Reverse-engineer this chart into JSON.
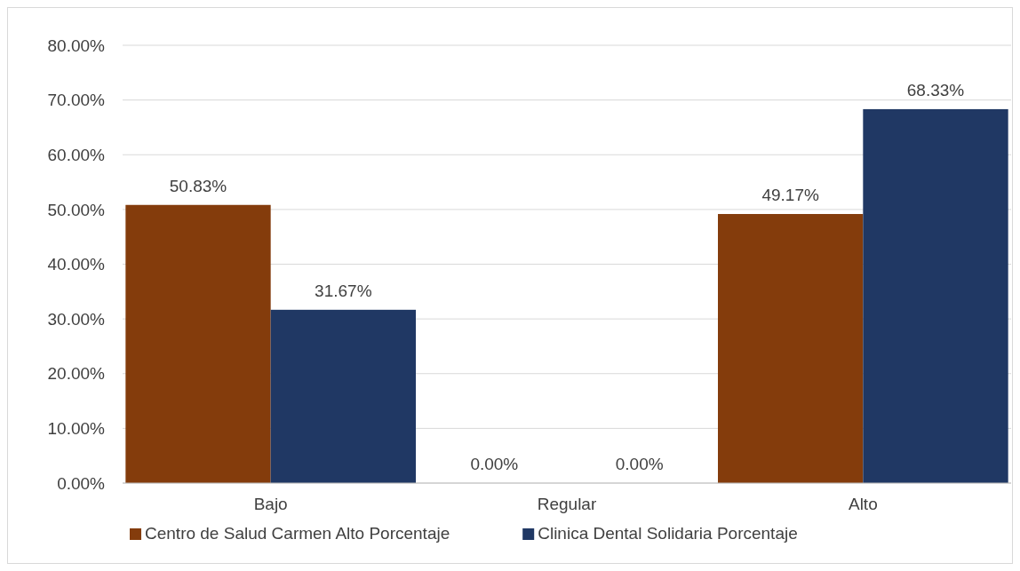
{
  "chart_data": {
    "type": "bar",
    "categories": [
      "Bajo",
      "Regular",
      "Alto"
    ],
    "series": [
      {
        "name": "Centro de Salud Carmen Alto Porcentaje",
        "color": "#843c0c",
        "values": [
          50.83,
          0,
          49.17
        ]
      },
      {
        "name": "Clinica Dental Solidaria Porcentaje",
        "color": "#203864",
        "values": [
          31.67,
          0,
          68.33
        ]
      }
    ],
    "ylim": [
      0,
      80
    ],
    "yticks": [
      {
        "value": 0,
        "label": "0.00%"
      },
      {
        "value": 10,
        "label": "10.00%"
      },
      {
        "value": 20,
        "label": "20.00%"
      },
      {
        "value": 30,
        "label": "30.00%"
      },
      {
        "value": 40,
        "label": "40.00%"
      },
      {
        "value": 50,
        "label": "50.00%"
      },
      {
        "value": 60,
        "label": "60.00%"
      },
      {
        "value": 70,
        "label": "70.00%"
      },
      {
        "value": 80,
        "label": "80.00%"
      }
    ],
    "value_labels": [
      [
        "50.83%",
        "0.00%",
        "49.17%"
      ],
      [
        "31.67%",
        "0.00%",
        "68.33%"
      ]
    ],
    "grid": "y",
    "legend": "bottom"
  }
}
